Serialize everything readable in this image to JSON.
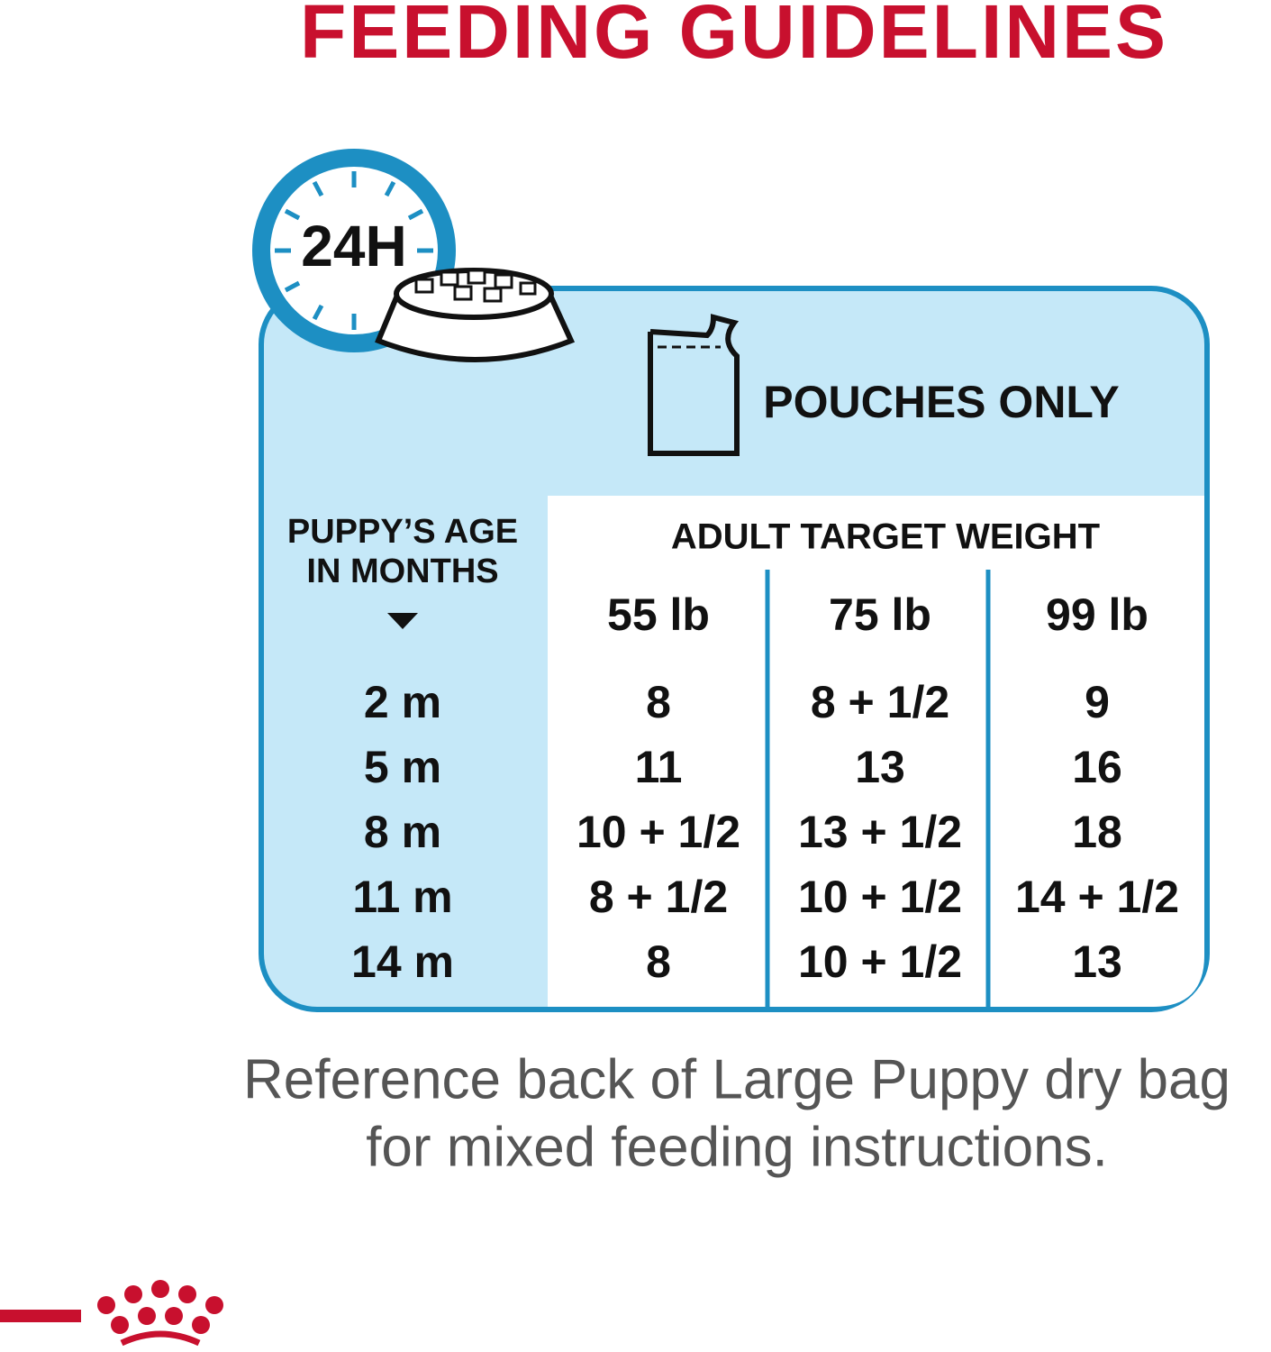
{
  "header": {
    "title": "FEEDING GUIDELINES"
  },
  "icon": {
    "clock_label": "24H"
  },
  "pouch": {
    "label": "POUCHES ONLY"
  },
  "table": {
    "row_header": [
      "PUPPY’S AGE",
      "IN MONTHS"
    ],
    "column_group": "ADULT TARGET WEIGHT",
    "columns": [
      "55 lb",
      "75 lb",
      "99 lb"
    ],
    "rows": [
      [
        "2 m",
        "8",
        "8 + 1/2",
        "9"
      ],
      [
        "5 m",
        "11",
        "13",
        "16"
      ],
      [
        "8 m",
        "10 + 1/2",
        "13 + 1/2",
        "18"
      ],
      [
        "11 m",
        "8 + 1/2",
        "10 + 1/2",
        "14 + 1/2"
      ],
      [
        "14 m",
        "8",
        "10 + 1/2",
        "13"
      ]
    ]
  },
  "footnote": [
    "Reference back of Large Puppy dry bag",
    "for mixed feeding instructions."
  ]
}
